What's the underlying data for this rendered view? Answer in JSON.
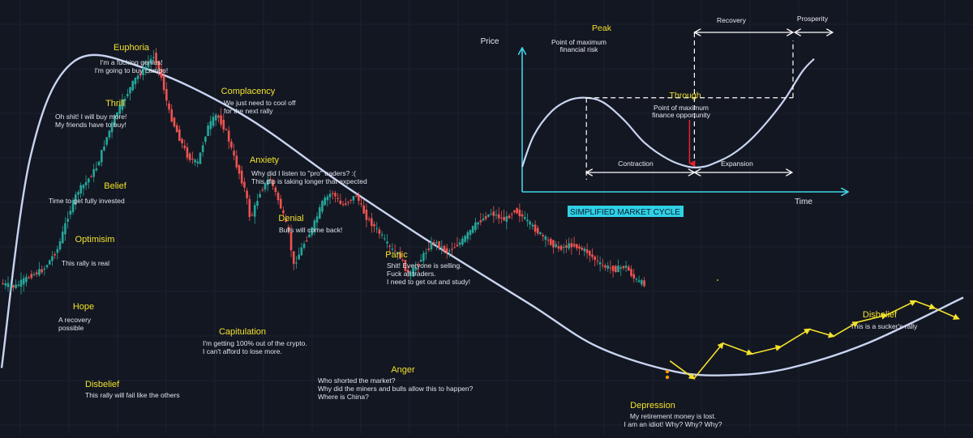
{
  "chart_data": [
    {
      "type": "line",
      "title": "",
      "xlabel": "",
      "ylabel": "",
      "grid": true,
      "note": "",
      "phases": [
        {
          "name": "Disbelief",
          "caption": [
            "This rally will fail like the others"
          ]
        },
        {
          "name": "Hope",
          "caption": [
            "A recovery",
            "possible"
          ]
        },
        {
          "name": "Optimisim",
          "caption": [
            "This rally is real"
          ]
        },
        {
          "name": "Belief",
          "caption": [
            "Time to get fully invested"
          ]
        },
        {
          "name": "Thrill",
          "caption": [
            "Oh shit! I will buy more!",
            "My friends have to buy!"
          ]
        },
        {
          "name": "Euphoria",
          "caption": [
            "I'm a fucking genius!",
            "I'm going to buy Lambo!"
          ]
        },
        {
          "name": "Complacency",
          "caption": [
            "We just need to cool off",
            "for the next rally"
          ]
        },
        {
          "name": "Anxiety",
          "caption": [
            "Why did I listen to  \"pro\" traders? :(",
            "This dip is taking longer that expected"
          ]
        },
        {
          "name": "Denial",
          "caption": [
            "Bulls will come back!"
          ]
        },
        {
          "name": "Capitulation",
          "caption": [
            "I'm getting 100% out of the crypto.",
            "I can't afford to lose more."
          ]
        },
        {
          "name": "Panic",
          "caption": [
            "Shit! Everyone is selling.",
            "Fuck all traders.",
            "I need to get out and study!"
          ]
        },
        {
          "name": "Anger",
          "caption": [
            "Who shorted the market?",
            "Why did the miners and bulls allow this to happen?",
            "Where is China?"
          ]
        },
        {
          "name": "Depression",
          "caption": [
            "My retirement money is lost.",
            "I am an idiot! Why? Why? Why?"
          ]
        },
        {
          "name": "Disbelief",
          "caption": [
            "This is a sucker's rally"
          ]
        }
      ],
      "price_path": [
        [
          0,
          34
        ],
        [
          1.5,
          33
        ],
        [
          3,
          36
        ],
        [
          4.5,
          38
        ],
        [
          6,
          44
        ],
        [
          7,
          53
        ],
        [
          8,
          60
        ],
        [
          9,
          63
        ],
        [
          10,
          67
        ],
        [
          11,
          75
        ],
        [
          12,
          82
        ],
        [
          13,
          87
        ],
        [
          14,
          92
        ],
        [
          15,
          95
        ],
        [
          16,
          99
        ],
        [
          16.8,
          92
        ],
        [
          17.5,
          83
        ],
        [
          18.5,
          76
        ],
        [
          19.5,
          70
        ],
        [
          20.5,
          68
        ],
        [
          21.5,
          78
        ],
        [
          22.5,
          82
        ],
        [
          23.5,
          77
        ],
        [
          24.5,
          68
        ],
        [
          25.5,
          60
        ],
        [
          26,
          52
        ],
        [
          27,
          60
        ],
        [
          28,
          64
        ],
        [
          29,
          57
        ],
        [
          30,
          48
        ],
        [
          30.5,
          39
        ],
        [
          31.5,
          45
        ],
        [
          32.5,
          50
        ],
        [
          33.5,
          57
        ],
        [
          34.5,
          60
        ],
        [
          35.5,
          56
        ],
        [
          37,
          59
        ],
        [
          38,
          53
        ],
        [
          39.5,
          48
        ],
        [
          40.5,
          44
        ],
        [
          41.5,
          42
        ],
        [
          42.5,
          36
        ],
        [
          44,
          42
        ],
        [
          45,
          46
        ],
        [
          46.5,
          43
        ],
        [
          48,
          46
        ],
        [
          49.5,
          51
        ],
        [
          51,
          54
        ],
        [
          52.5,
          52
        ],
        [
          53.5,
          55
        ],
        [
          55,
          51
        ],
        [
          56.5,
          47
        ],
        [
          58,
          44
        ],
        [
          59.5,
          45
        ],
        [
          61,
          43
        ],
        [
          62.5,
          39
        ],
        [
          64,
          38
        ],
        [
          65,
          39
        ],
        [
          66,
          35
        ],
        [
          66.8,
          34
        ]
      ],
      "sentiment_curve": [
        [
          0,
          10
        ],
        [
          3,
          70
        ],
        [
          7.5,
          97
        ],
        [
          15,
          95
        ],
        [
          25,
          82
        ],
        [
          35,
          63
        ],
        [
          45,
          45
        ],
        [
          55,
          28
        ],
        [
          62,
          16
        ],
        [
          70,
          9
        ],
        [
          76,
          8
        ],
        [
          82,
          10
        ],
        [
          90,
          17
        ],
        [
          100,
          30
        ]
      ],
      "projection": [
        [
          69.5,
          12
        ],
        [
          72,
          7
        ],
        [
          75,
          17
        ],
        [
          78,
          14
        ],
        [
          81,
          16
        ],
        [
          84,
          21
        ],
        [
          86.5,
          19
        ],
        [
          89,
          23
        ],
        [
          92,
          25
        ],
        [
          95,
          29
        ],
        [
          97,
          27
        ],
        [
          99.5,
          24
        ]
      ]
    },
    {
      "type": "line",
      "title": "SIMPLIFIED MARKET CYCLE",
      "xlabel": "Time",
      "ylabel": "Price",
      "labels": {
        "peak": "Peak",
        "peak_desc": [
          "Point of maximum",
          "financial risk"
        ],
        "trough": "Through",
        "trough_desc": [
          "Point of maximum",
          "finance opportunity"
        ],
        "contraction": "Contraction",
        "expansion": "Expansion",
        "recovery": "Recovery",
        "prosperity": "Prosperity"
      },
      "x": [
        0,
        4,
        10,
        16,
        22,
        28,
        35,
        42,
        50,
        57,
        62,
        66,
        72,
        78,
        84,
        90,
        96,
        100
      ],
      "y": [
        20,
        45,
        64,
        73,
        75,
        71,
        57,
        39,
        26,
        20,
        20,
        23,
        30,
        41,
        56,
        74,
        96,
        106
      ]
    }
  ],
  "colors": {
    "background": "#131722",
    "candle_up": "#26a69a",
    "candle_down": "#ef5350",
    "curve": "#c8d4f0",
    "cycle_axis": "#3fd3e6",
    "phase_text": "#f2e22b",
    "caption_text": "#dfe3ea",
    "trough_arrow": "#e0232f",
    "grid": "#1b2030"
  }
}
